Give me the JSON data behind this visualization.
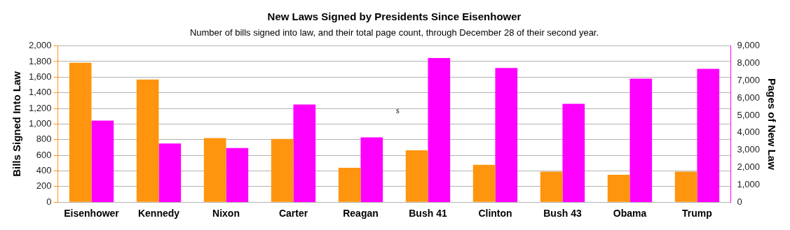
{
  "chart_data": {
    "type": "bar",
    "title": "New Laws Signed by Presidents Since Eisenhower",
    "subtitle": "Number of bills signed into law, and their total page count, through December 28 of their second year.",
    "ylabel": "Bills Signed Into Law",
    "y2label": "Pages of New Law",
    "categories": [
      "Eisenhower",
      "Kennedy",
      "Nixon",
      "Carter",
      "Reagan",
      "Bush 41",
      "Clinton",
      "Bush 43",
      "Obama",
      "Trump"
    ],
    "series": [
      {
        "color": "#ff950e",
        "values": [
          1785,
          1570,
          820,
          810,
          440,
          663,
          478,
          390,
          351,
          390
        ]
      },
      {
        "color": "#ff00ff",
        "axis": "y2",
        "values": [
          4700,
          3380,
          3120,
          5620,
          3730,
          8300,
          7730,
          5660,
          7110,
          7680
        ]
      }
    ],
    "ylim": [
      0,
      2000
    ],
    "yticks": [
      {
        "value": 0,
        "label": "0"
      },
      {
        "value": 200,
        "label": "200"
      },
      {
        "value": 400,
        "label": "400"
      },
      {
        "value": 600,
        "label": "600"
      },
      {
        "value": 800,
        "label": "800"
      },
      {
        "value": 1000,
        "label": "1,000"
      },
      {
        "value": 1200,
        "label": "1,200"
      },
      {
        "value": 1400,
        "label": "1,400"
      },
      {
        "value": 1600,
        "label": "1,600"
      },
      {
        "value": 1800,
        "label": "1,800"
      },
      {
        "value": 2000,
        "label": "2,000"
      }
    ],
    "y2lim": [
      0,
      9000
    ],
    "y2ticks": [
      {
        "value": 0,
        "label": "0"
      },
      {
        "value": 1000,
        "label": "1,000"
      },
      {
        "value": 2000,
        "label": "2,000"
      },
      {
        "value": 3000,
        "label": "3,000"
      },
      {
        "value": 4000,
        "label": "4,000"
      },
      {
        "value": 5000,
        "label": "5,000"
      },
      {
        "value": 6000,
        "label": "6,000"
      },
      {
        "value": 7000,
        "label": "7,000"
      },
      {
        "value": 8000,
        "label": "8,000"
      },
      {
        "value": 9000,
        "label": "9,000"
      }
    ],
    "annotations": [
      "s"
    ],
    "grid": "y",
    "legend": false
  }
}
